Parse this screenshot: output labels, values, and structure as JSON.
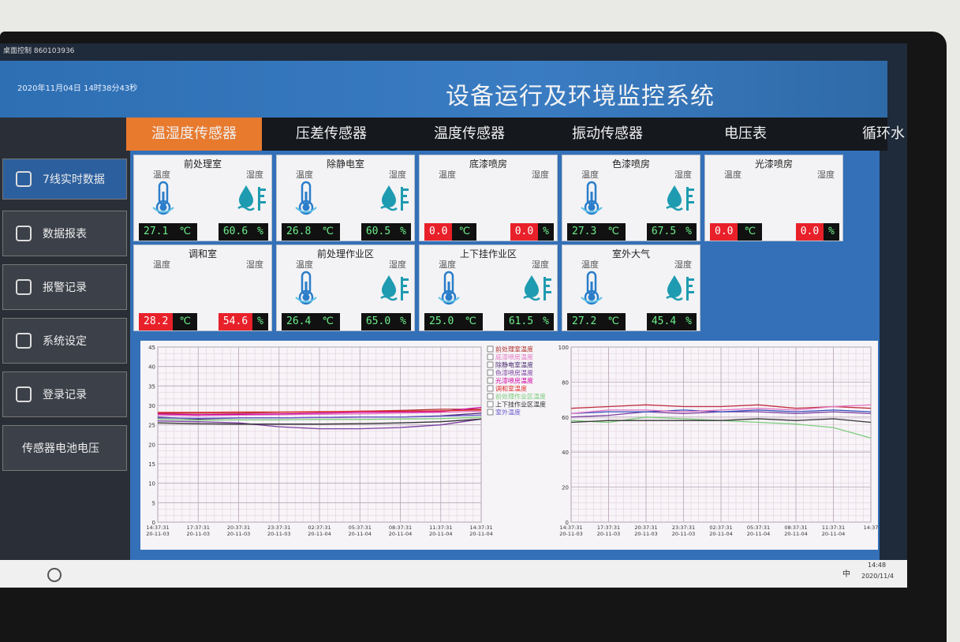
{
  "window_title": "桌面控制 860103936",
  "header": {
    "datetime": "2020年11月04日   14时38分43秒",
    "title": "设备运行及环境监控系统"
  },
  "sidebar": [
    "7线实时数据",
    "数据报表",
    "报警记录",
    "系统设定",
    "登录记录",
    "传感器电池电压"
  ],
  "tabs": [
    "温湿度传感器",
    "压差传感器",
    "温度传感器",
    "振动传感器",
    "电压表",
    "循环水"
  ],
  "labels": {
    "temp": "温度",
    "hum": "湿度",
    "temp_unit": "℃",
    "hum_unit": "%"
  },
  "sensors": [
    {
      "name": "前处理室",
      "temp": "27.1",
      "hum": "60.6",
      "alarm": false,
      "icon": true
    },
    {
      "name": "除静电室",
      "temp": "26.8",
      "hum": "60.5",
      "alarm": false,
      "icon": true
    },
    {
      "name": "底漆喷房",
      "temp": "0.0",
      "hum": "0.0",
      "alarm": true,
      "icon": false
    },
    {
      "name": "色漆喷房",
      "temp": "27.3",
      "hum": "67.5",
      "alarm": false,
      "icon": true
    },
    {
      "name": "光漆喷房",
      "temp": "0.0",
      "hum": "0.0",
      "alarm": true,
      "icon": false
    },
    {
      "name": "调和室",
      "temp": "28.2",
      "hum": "54.6",
      "alarm": true,
      "icon": false
    },
    {
      "name": "前处理作业区",
      "temp": "26.4",
      "hum": "65.0",
      "alarm": false,
      "icon": true
    },
    {
      "name": "上下挂作业区",
      "temp": "25.0",
      "hum": "61.5",
      "alarm": false,
      "icon": true
    },
    {
      "name": "室外大气",
      "temp": "27.2",
      "hum": "45.4",
      "alarm": false,
      "icon": true
    }
  ],
  "chart_data": [
    {
      "type": "line",
      "ylim": [
        0,
        45
      ],
      "yticks": [
        0,
        5,
        10,
        15,
        20,
        25,
        30,
        35,
        40,
        45
      ],
      "grid": true,
      "categories": [
        "14:37:31",
        "17:37:31",
        "20:37:31",
        "23:37:31",
        "02:37:31",
        "05:37:31",
        "08:37:31",
        "11:37:31",
        "14:37:31"
      ],
      "category_dates": [
        "20-11-03",
        "20-11-03",
        "20-11-03",
        "20-11-03",
        "20-11-04",
        "20-11-04",
        "20-11-04",
        "20-11-04",
        "20-11-04"
      ],
      "series": [
        {
          "name": "前处理室温度",
          "color": "#b03030",
          "values": [
            28,
            28,
            28,
            28.2,
            28.3,
            28.5,
            28.7,
            29,
            29
          ]
        },
        {
          "name": "底漆喷房温度",
          "color": "#e377c2",
          "values": [
            27.5,
            27.3,
            27.5,
            27.6,
            27.7,
            27.8,
            28,
            28.2,
            28.5
          ]
        },
        {
          "name": "除静电室温度",
          "color": "#4b2a6e",
          "values": [
            27,
            26.5,
            26.8,
            26.8,
            26.9,
            27,
            27,
            27.3,
            28
          ]
        },
        {
          "name": "色漆喷房温度",
          "color": "#7b3fa0",
          "values": [
            26,
            25.8,
            25.5,
            24.5,
            24,
            24,
            24.3,
            25,
            26.5
          ]
        },
        {
          "name": "光漆喷房温度",
          "color": "#d000a0",
          "values": [
            27.8,
            27.6,
            27.7,
            27.8,
            28,
            28.2,
            28.3,
            28.4,
            29.5
          ]
        },
        {
          "name": "调和室温度",
          "color": "#e03030",
          "values": [
            28.2,
            28.2,
            28.3,
            28.3,
            28.4,
            28.5,
            28.5,
            28.6,
            28.8
          ]
        },
        {
          "name": "前处理作业区温度",
          "color": "#7ccc7c",
          "values": [
            26.5,
            26.2,
            26.3,
            26.3,
            26.4,
            26.4,
            26.5,
            26.6,
            27
          ]
        },
        {
          "name": "上下挂作业区温度",
          "color": "#333333",
          "values": [
            25.5,
            25.3,
            25.2,
            25.2,
            25.2,
            25.3,
            25.5,
            25.8,
            26.5
          ]
        },
        {
          "name": "室外温度",
          "color": "#6a5acd",
          "values": [
            26.8,
            26.7,
            26.8,
            26.8,
            26.9,
            27,
            27,
            27.2,
            27.5
          ]
        }
      ]
    },
    {
      "type": "line",
      "ylim": [
        0,
        100
      ],
      "yticks": [
        0,
        20,
        40,
        60,
        80,
        100
      ],
      "grid": true,
      "categories": [
        "14:37:31",
        "17:37:31",
        "20:37:31",
        "23:37:31",
        "02:37:31",
        "05:37:31",
        "08:37:31",
        "11:37:31",
        "14:37"
      ],
      "category_dates": [
        "20-11-03",
        "20-11-03",
        "20-11-03",
        "20-11-03",
        "20-11-04",
        "20-11-04",
        "20-11-04",
        "20-11-04",
        null
      ],
      "series": [
        {
          "color": "#c03040",
          "values": [
            65,
            66,
            67,
            66,
            66,
            67,
            65,
            66,
            65
          ]
        },
        {
          "color": "#7b3fa0",
          "values": [
            60,
            61,
            63,
            62,
            63,
            63,
            62,
            63,
            62
          ]
        },
        {
          "color": "#3050c0",
          "values": [
            62,
            63,
            63,
            64,
            63,
            64,
            63,
            64,
            63
          ]
        },
        {
          "color": "#7ccc7c",
          "values": [
            58,
            57,
            60,
            59,
            58,
            57,
            56,
            54,
            48
          ]
        },
        {
          "color": "#333333",
          "values": [
            57,
            58,
            58,
            58,
            58,
            59,
            58,
            59,
            57
          ]
        },
        {
          "color": "#e377c2",
          "values": [
            62,
            64,
            64,
            63,
            64,
            65,
            64,
            66,
            67
          ]
        }
      ]
    }
  ],
  "taskbar": {
    "time": "14:48",
    "date": "2020/11/4",
    "ime": "中"
  }
}
